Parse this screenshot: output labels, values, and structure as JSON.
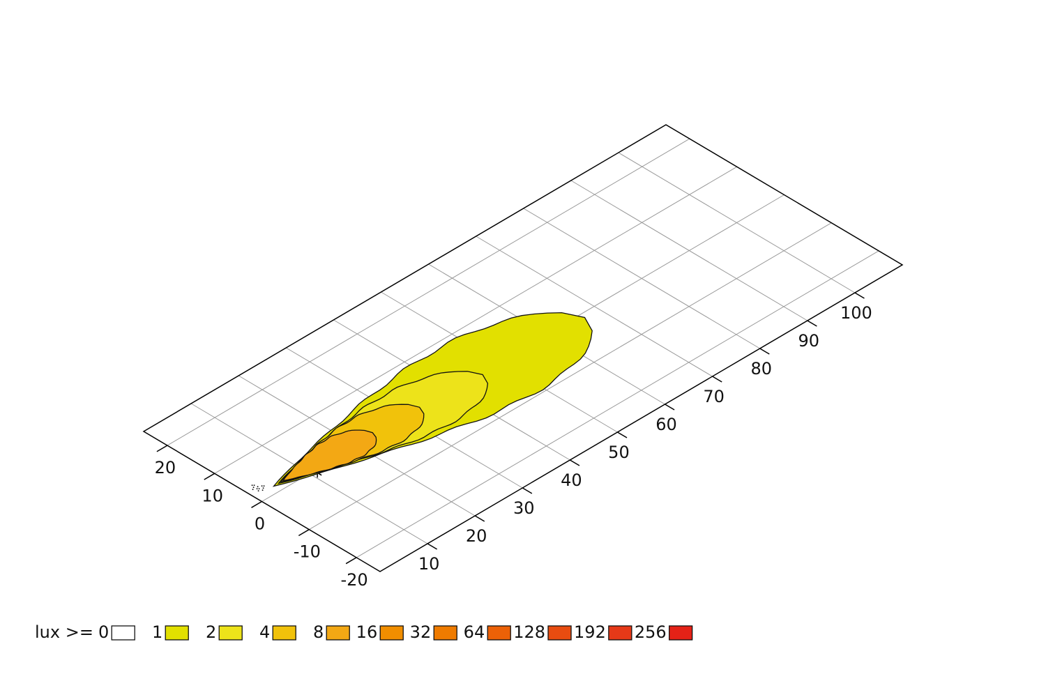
{
  "chart_data": {
    "type": "isolux",
    "xlim": [
      0,
      110
    ],
    "xticks": [
      10,
      20,
      30,
      40,
      50,
      60,
      70,
      80,
      90,
      100
    ],
    "ylim": [
      -25,
      25
    ],
    "yticks": [
      -20,
      -10,
      0,
      10,
      20
    ],
    "grid": true,
    "legend": {
      "title": "lux >=",
      "levels": [
        0,
        1,
        2,
        4,
        8,
        16,
        32,
        64,
        128,
        192,
        256
      ],
      "colors": [
        "#ffffff",
        "#e2e000",
        "#ede31a",
        "#f1c20b",
        "#f3a814",
        "#f18e00",
        "#ef7b00",
        "#ec6107",
        "#e84c10",
        "#e63918",
        "#e42217"
      ]
    }
  }
}
